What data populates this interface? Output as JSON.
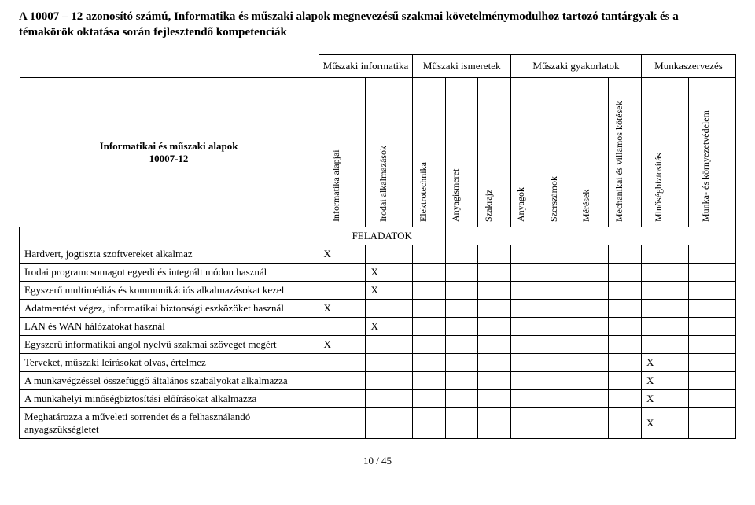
{
  "title": "A 10007 – 12 azonosító számú, Informatika és műszaki alapok megnevezésű szakmai követelménymodulhoz tartozó tantárgyak és a témakörök oktatása során fejlesztendő kompetenciák",
  "module_label": "Informatikai és műszaki alapok\n10007-12",
  "groups": {
    "g0": "Műszaki informatika",
    "g1": "Műszaki ismeretek",
    "g2": "Műszaki gyakorlatok",
    "g3": "Munkaszervezés"
  },
  "cols": {
    "c0": "Informatika alapjai",
    "c1": "Irodai alkalmazások",
    "c2": "Elektrotechnika",
    "c3": "Anyagismeret",
    "c4": "Szakrajz",
    "c5": "Anyagok",
    "c6": "Szerszámok",
    "c7": "Mérések",
    "c8": "Mechanikai és villamos kötések",
    "c9": "Minőségbiztosítás",
    "c10": "Munka- és környezetvédelem"
  },
  "section": "FELADATOK",
  "rows": {
    "r0": {
      "label": "Hardvert, jogtiszta szoftvereket alkalmaz",
      "x": {
        "c0": "X"
      }
    },
    "r1": {
      "label": "Irodai programcsomagot egyedi és integrált módon használ",
      "x": {
        "c1": "X"
      }
    },
    "r2": {
      "label": "Egyszerű multimédiás és kommunikációs alkalmazásokat kezel",
      "x": {
        "c1": "X"
      }
    },
    "r3": {
      "label": "Adatmentést végez, informatikai biztonsági eszközöket használ",
      "x": {
        "c0": "X"
      }
    },
    "r4": {
      "label": "LAN és WAN hálózatokat használ",
      "x": {
        "c1": "X"
      }
    },
    "r5": {
      "label": "Egyszerű informatikai angol nyelvű szakmai szöveget megért",
      "x": {
        "c0": "X"
      }
    },
    "r6": {
      "label": "Terveket, műszaki leírásokat olvas, értelmez",
      "x": {
        "c9": "X"
      }
    },
    "r7": {
      "label": "A munkavégzéssel összefüggő általános szabályokat alkalmazza",
      "x": {
        "c9": "X"
      }
    },
    "r8": {
      "label": "A munkahelyi minőségbiztosítási előírásokat alkalmazza",
      "x": {
        "c9": "X"
      }
    },
    "r9": {
      "label": "Meghatározza a műveleti sorrendet és a felhasználandó anyagszükségletet",
      "x": {
        "c9": "X"
      }
    }
  },
  "footer": "10 / 45"
}
